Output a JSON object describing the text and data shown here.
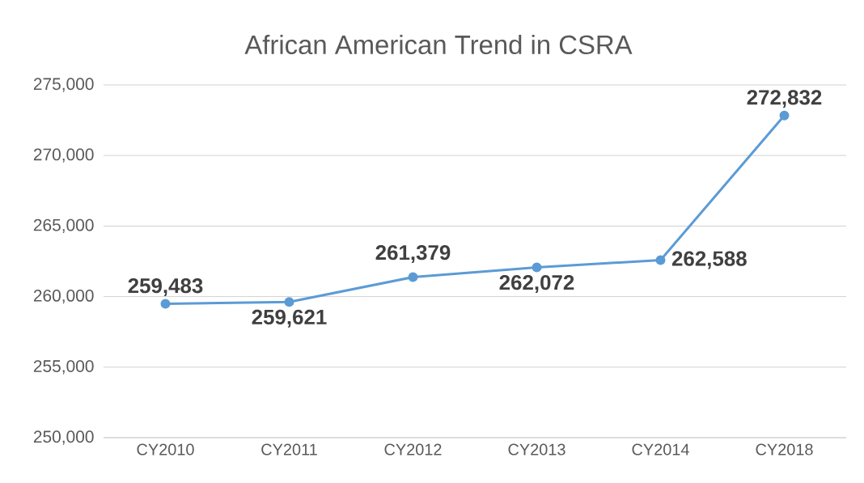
{
  "chart_data": {
    "type": "line",
    "title": "African American Trend in CSRA",
    "categories": [
      "CY2010",
      "CY2011",
      "CY2012",
      "CY2013",
      "CY2014",
      "CY2018"
    ],
    "series": [
      {
        "color": "#5b9bd5",
        "values": [
          259483,
          259621,
          261379,
          262072,
          262588,
          272832
        ],
        "value_labels": [
          "259,483",
          "259,621",
          "261,379",
          "262,072",
          "262,588",
          "272,832"
        ]
      }
    ],
    "ylim": [
      250000,
      275000
    ],
    "yticks": [
      {
        "value": 250000,
        "label": "250,000"
      },
      {
        "value": 255000,
        "label": "255,000"
      },
      {
        "value": 260000,
        "label": "260,000"
      },
      {
        "value": 265000,
        "label": "265,000"
      },
      {
        "value": 270000,
        "label": "270,000"
      },
      {
        "value": 275000,
        "label": "275,000"
      }
    ],
    "grid": "y",
    "marker": "circle",
    "line_style": "solid"
  }
}
